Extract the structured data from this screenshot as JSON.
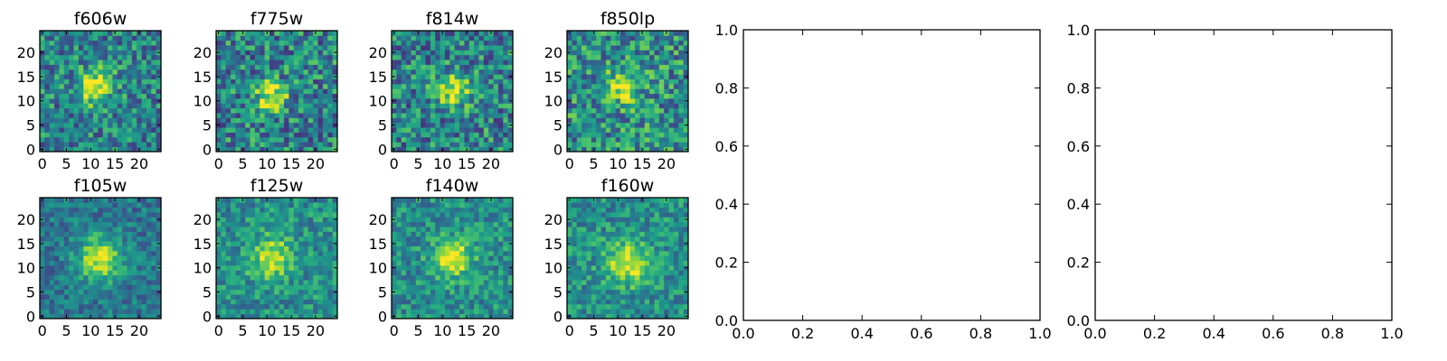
{
  "chart_data": [
    {
      "type": "heatmap",
      "title": "f606w",
      "x_ticks": [
        "0",
        "5",
        "10",
        "15",
        "20"
      ],
      "y_ticks": [
        "0",
        "5",
        "10",
        "15",
        "20"
      ],
      "xlim": [
        -0.5,
        24.5
      ],
      "ylim": [
        -0.5,
        24.5
      ],
      "grid_size": 25,
      "source": {
        "cx": 11,
        "cy": 13,
        "sigma": 2.5,
        "amp": 0.55,
        "base": 0.45,
        "noise": 0.55,
        "seed": 606
      }
    },
    {
      "type": "heatmap",
      "title": "f775w",
      "x_ticks": [
        "0",
        "5",
        "10",
        "15",
        "20"
      ],
      "y_ticks": [
        "0",
        "5",
        "10",
        "15",
        "20"
      ],
      "xlim": [
        -0.5,
        24.5
      ],
      "ylim": [
        -0.5,
        24.5
      ],
      "grid_size": 25,
      "source": {
        "cx": 11,
        "cy": 11,
        "sigma": 2.2,
        "amp": 0.55,
        "base": 0.45,
        "noise": 0.6,
        "seed": 775
      }
    },
    {
      "type": "heatmap",
      "title": "f814w",
      "x_ticks": [
        "0",
        "5",
        "10",
        "15",
        "20"
      ],
      "y_ticks": [
        "0",
        "5",
        "10",
        "15",
        "20"
      ],
      "xlim": [
        -0.5,
        24.5
      ],
      "ylim": [
        -0.5,
        24.5
      ],
      "grid_size": 25,
      "source": {
        "cx": 12,
        "cy": 12,
        "sigma": 2.3,
        "amp": 0.55,
        "base": 0.45,
        "noise": 0.6,
        "seed": 814
      }
    },
    {
      "type": "heatmap",
      "title": "f850lp",
      "x_ticks": [
        "0",
        "5",
        "10",
        "15",
        "20"
      ],
      "y_ticks": [
        "0",
        "5",
        "10",
        "15",
        "20"
      ],
      "xlim": [
        -0.5,
        24.5
      ],
      "ylim": [
        -0.5,
        24.5
      ],
      "grid_size": 25,
      "source": {
        "cx": 11,
        "cy": 13,
        "sigma": 2.2,
        "amp": 0.5,
        "base": 0.5,
        "noise": 0.6,
        "seed": 850
      }
    },
    {
      "type": "heatmap",
      "title": "f105w",
      "x_ticks": [
        "0",
        "5",
        "10",
        "15",
        "20"
      ],
      "y_ticks": [
        "0",
        "5",
        "10",
        "15",
        "20"
      ],
      "xlim": [
        -0.5,
        24.5
      ],
      "ylim": [
        -0.5,
        24.5
      ],
      "grid_size": 25,
      "source": {
        "cx": 12,
        "cy": 12,
        "sigma": 3.2,
        "amp": 0.55,
        "base": 0.4,
        "noise": 0.35,
        "seed": 105
      }
    },
    {
      "type": "heatmap",
      "title": "f125w",
      "x_ticks": [
        "0",
        "5",
        "10",
        "15",
        "20"
      ],
      "y_ticks": [
        "0",
        "5",
        "10",
        "15",
        "20"
      ],
      "xlim": [
        -0.5,
        24.5
      ],
      "ylim": [
        -0.5,
        24.5
      ],
      "grid_size": 25,
      "source": {
        "cx": 11,
        "cy": 12,
        "sigma": 3.0,
        "amp": 0.45,
        "base": 0.5,
        "noise": 0.4,
        "seed": 125
      }
    },
    {
      "type": "heatmap",
      "title": "f140w",
      "x_ticks": [
        "0",
        "5",
        "10",
        "15",
        "20"
      ],
      "y_ticks": [
        "0",
        "5",
        "10",
        "15",
        "20"
      ],
      "xlim": [
        -0.5,
        24.5
      ],
      "ylim": [
        -0.5,
        24.5
      ],
      "grid_size": 25,
      "source": {
        "cx": 12,
        "cy": 12,
        "sigma": 2.8,
        "amp": 0.5,
        "base": 0.5,
        "noise": 0.4,
        "seed": 140
      }
    },
    {
      "type": "heatmap",
      "title": "f160w",
      "x_ticks": [
        "0",
        "5",
        "10",
        "15",
        "20"
      ],
      "y_ticks": [
        "0",
        "5",
        "10",
        "15",
        "20"
      ],
      "xlim": [
        -0.5,
        24.5
      ],
      "ylim": [
        -0.5,
        24.5
      ],
      "grid_size": 25,
      "source": {
        "cx": 12,
        "cy": 11,
        "sigma": 3.0,
        "amp": 0.5,
        "base": 0.5,
        "noise": 0.4,
        "seed": 160
      }
    },
    {
      "type": "line",
      "title": "",
      "xlim": [
        0.0,
        1.0
      ],
      "ylim": [
        0.0,
        1.0
      ],
      "x_ticks": [
        "0.0",
        "0.2",
        "0.4",
        "0.6",
        "0.8",
        "1.0"
      ],
      "y_ticks": [
        "0.0",
        "0.2",
        "0.4",
        "0.6",
        "0.8",
        "1.0"
      ],
      "series": []
    },
    {
      "type": "line",
      "title": "",
      "xlim": [
        0.0,
        1.0
      ],
      "ylim": [
        0.0,
        1.0
      ],
      "x_ticks": [
        "0.0",
        "0.2",
        "0.4",
        "0.6",
        "0.8",
        "1.0"
      ],
      "y_ticks": [
        "0.0",
        "0.2",
        "0.4",
        "0.6",
        "0.8",
        "1.0"
      ],
      "series": []
    }
  ]
}
